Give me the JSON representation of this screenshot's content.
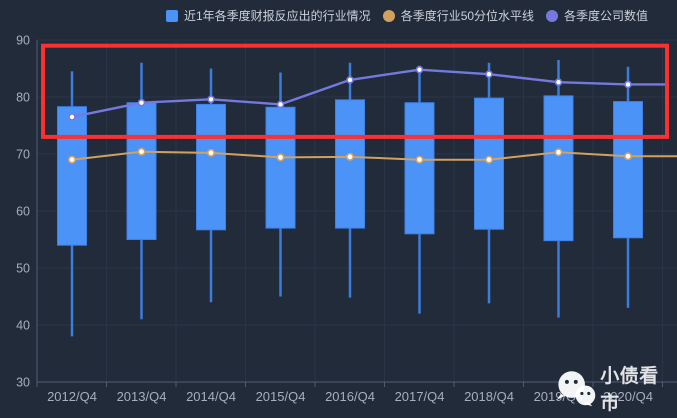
{
  "legend": {
    "items": [
      {
        "label": "近1年各季度财报反应出的行业情况",
        "color": "#4b93f7",
        "shape": "square"
      },
      {
        "label": "各季度行业50分位水平线",
        "color": "#d2a160",
        "shape": "circle"
      },
      {
        "label": "各季度公司数值",
        "color": "#7579dd",
        "shape": "circle"
      }
    ]
  },
  "chart_data": {
    "type": "candlestick+line",
    "categories": [
      "2012/Q4",
      "2013/Q4",
      "2014/Q4",
      "2015/Q4",
      "2016/Q4",
      "2017/Q4",
      "2018/Q4",
      "2019/Q4",
      "2020/Q4"
    ],
    "series": [
      {
        "name": "近1年各季度财报反应出的行业情况",
        "type": "candlestick",
        "values": [
          {
            "high": 84.5,
            "box_top": 78.3,
            "box_bottom": 54.0,
            "low": 38.0
          },
          {
            "high": 86.0,
            "box_top": 79.0,
            "box_bottom": 55.0,
            "low": 41.0
          },
          {
            "high": 85.0,
            "box_top": 78.7,
            "box_bottom": 56.7,
            "low": 44.0
          },
          {
            "high": 84.3,
            "box_top": 78.2,
            "box_bottom": 57.0,
            "low": 45.0
          },
          {
            "high": 86.0,
            "box_top": 79.5,
            "box_bottom": 57.0,
            "low": 44.8
          },
          {
            "high": 85.5,
            "box_top": 79.0,
            "box_bottom": 56.0,
            "low": 42.0
          },
          {
            "high": 86.0,
            "box_top": 79.8,
            "box_bottom": 56.8,
            "low": 43.8
          },
          {
            "high": 86.5,
            "box_top": 80.2,
            "box_bottom": 54.8,
            "low": 41.3
          },
          {
            "high": 85.3,
            "box_top": 79.2,
            "box_bottom": 55.3,
            "low": 43.0
          }
        ]
      },
      {
        "name": "各季度行业50分位水平线",
        "type": "line",
        "color": "#d2a160",
        "values": [
          69.0,
          70.4,
          70.2,
          69.4,
          69.5,
          69.0,
          69.0,
          70.3,
          69.6
        ]
      },
      {
        "name": "各季度公司数值",
        "type": "line",
        "color": "#7579dd",
        "values": [
          76.5,
          79.0,
          79.6,
          78.7,
          83.0,
          84.8,
          84.0,
          82.6,
          82.2
        ]
      }
    ],
    "ylim": [
      30,
      90
    ],
    "yticks": [
      30,
      40,
      50,
      60,
      70,
      80,
      90
    ],
    "grid": true,
    "legend_position": "top",
    "annotation_red_box": {
      "y_from": 73,
      "y_to": 89,
      "color": "#fb3131"
    }
  },
  "watermark": {
    "text": "小债看市",
    "icon": "wechat-icon"
  },
  "colors": {
    "background": "#222b3a",
    "grid": "#2b3447",
    "axis": "#515c74",
    "axis_label": "#a7aebe",
    "box_fill": "#4b93f7",
    "box_border": "#3c80e8",
    "whisker": "#3b7ddd",
    "median_line": "#d2a160",
    "company_line": "#7579dd",
    "red_box": "#fb3131",
    "legend_text": "#ccd1db",
    "watermark_text": "#e2e3e6"
  }
}
